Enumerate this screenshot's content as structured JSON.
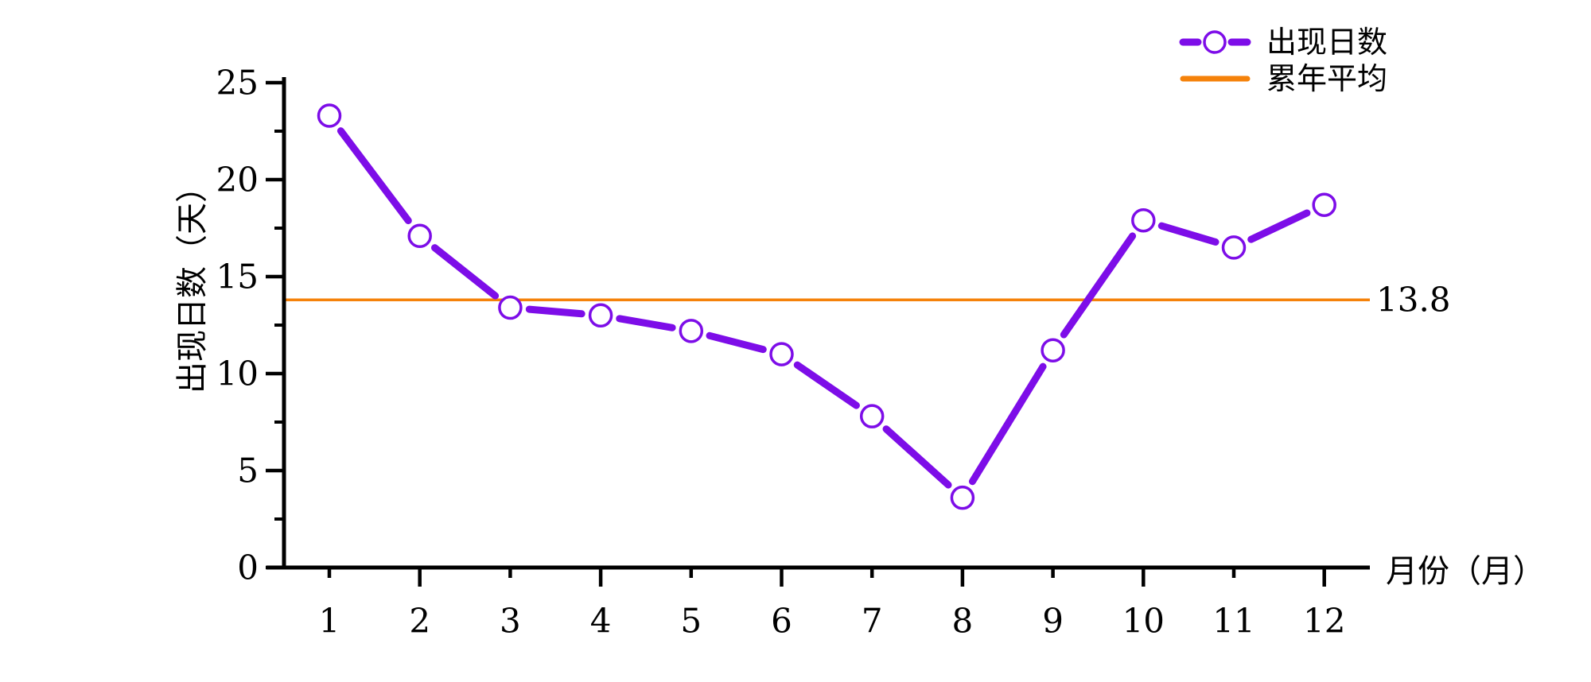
{
  "chart_data": {
    "type": "line",
    "title": "",
    "xlabel": "月份（月）",
    "ylabel": "出现日数（天）",
    "x": [
      1,
      2,
      3,
      4,
      5,
      6,
      7,
      8,
      9,
      10,
      11,
      12
    ],
    "xtick_labels": [
      "1",
      "2",
      "3",
      "4",
      "5",
      "6",
      "7",
      "8",
      "9",
      "10",
      "11",
      "12"
    ],
    "ytick_labels": [
      "0",
      "5",
      "10",
      "15",
      "20",
      "25"
    ],
    "ylim": [
      0,
      25
    ],
    "ytick_major_step": 5,
    "ytick_minor_step": 2.5,
    "grid": false,
    "legend_position": "top-right",
    "background_color": "#ffffff",
    "axis_color": "#000000",
    "series": [
      {
        "name": "出现日数",
        "type": "line-markers",
        "marker": "open-circle",
        "color": "#7d0de8",
        "values": [
          23.3,
          17.1,
          13.4,
          13.0,
          12.2,
          11.0,
          7.8,
          3.6,
          11.2,
          17.9,
          16.5,
          18.7
        ]
      },
      {
        "name": "累年平均",
        "type": "hline",
        "color": "#f5820a",
        "value": 13.8,
        "label": "13.8"
      }
    ]
  }
}
